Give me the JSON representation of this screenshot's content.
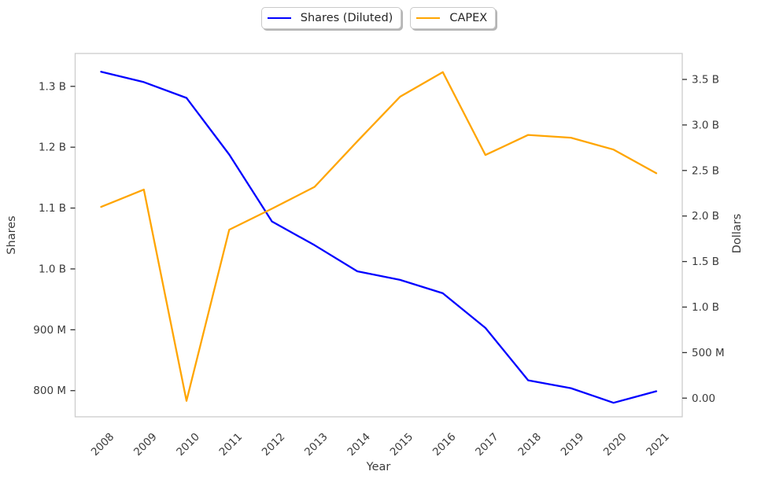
{
  "chart_data": {
    "type": "line",
    "title": "",
    "xlabel": "Year",
    "ylabel_left": "Shares",
    "ylabel_right": "Dollars",
    "x": [
      2008,
      2009,
      2010,
      2011,
      2012,
      2013,
      2014,
      2015,
      2016,
      2017,
      2018,
      2019,
      2020,
      2021
    ],
    "series": [
      {
        "name": "Shares (Diluted)",
        "axis": "left",
        "color": "#0000ff",
        "units": "shares (millions)",
        "values_millions": [
          1324,
          1307,
          1281,
          1188,
          1078,
          1039,
          996,
          982,
          960,
          903,
          817,
          804,
          780,
          799
        ]
      },
      {
        "name": "CAPEX",
        "axis": "right",
        "color": "#ffa500",
        "units": "dollars (billions)",
        "values_billions": [
          2.1,
          2.29,
          -0.03,
          1.85,
          2.08,
          2.32,
          2.82,
          3.31,
          3.58,
          2.67,
          2.89,
          2.86,
          2.73,
          2.47
        ]
      }
    ],
    "left_axis": {
      "label": "Shares",
      "range_millions": [
        757,
        1354
      ],
      "ticks": [
        {
          "value_millions": 800,
          "label": "800 M"
        },
        {
          "value_millions": 900,
          "label": "900 M"
        },
        {
          "value_millions": 1000,
          "label": "1.0 B"
        },
        {
          "value_millions": 1100,
          "label": "1.1 B"
        },
        {
          "value_millions": 1200,
          "label": "1.2 B"
        },
        {
          "value_millions": 1300,
          "label": "1.3 B"
        }
      ]
    },
    "right_axis": {
      "label": "Dollars",
      "range_billions": [
        -0.205,
        3.785
      ],
      "ticks": [
        {
          "value_billions": 0.0,
          "label": "0.00"
        },
        {
          "value_billions": 0.5,
          "label": "500 M"
        },
        {
          "value_billions": 1.0,
          "label": "1.0 B"
        },
        {
          "value_billions": 1.5,
          "label": "1.5 B"
        },
        {
          "value_billions": 2.0,
          "label": "2.0 B"
        },
        {
          "value_billions": 2.5,
          "label": "2.5 B"
        },
        {
          "value_billions": 3.0,
          "label": "3.0 B"
        },
        {
          "value_billions": 3.5,
          "label": "3.5 B"
        }
      ]
    },
    "legend": {
      "position": "top-center",
      "entries": [
        "Shares (Diluted)",
        "CAPEX"
      ]
    },
    "grid": false,
    "spine_color": "#cccccc",
    "tick_color": "#333333"
  }
}
